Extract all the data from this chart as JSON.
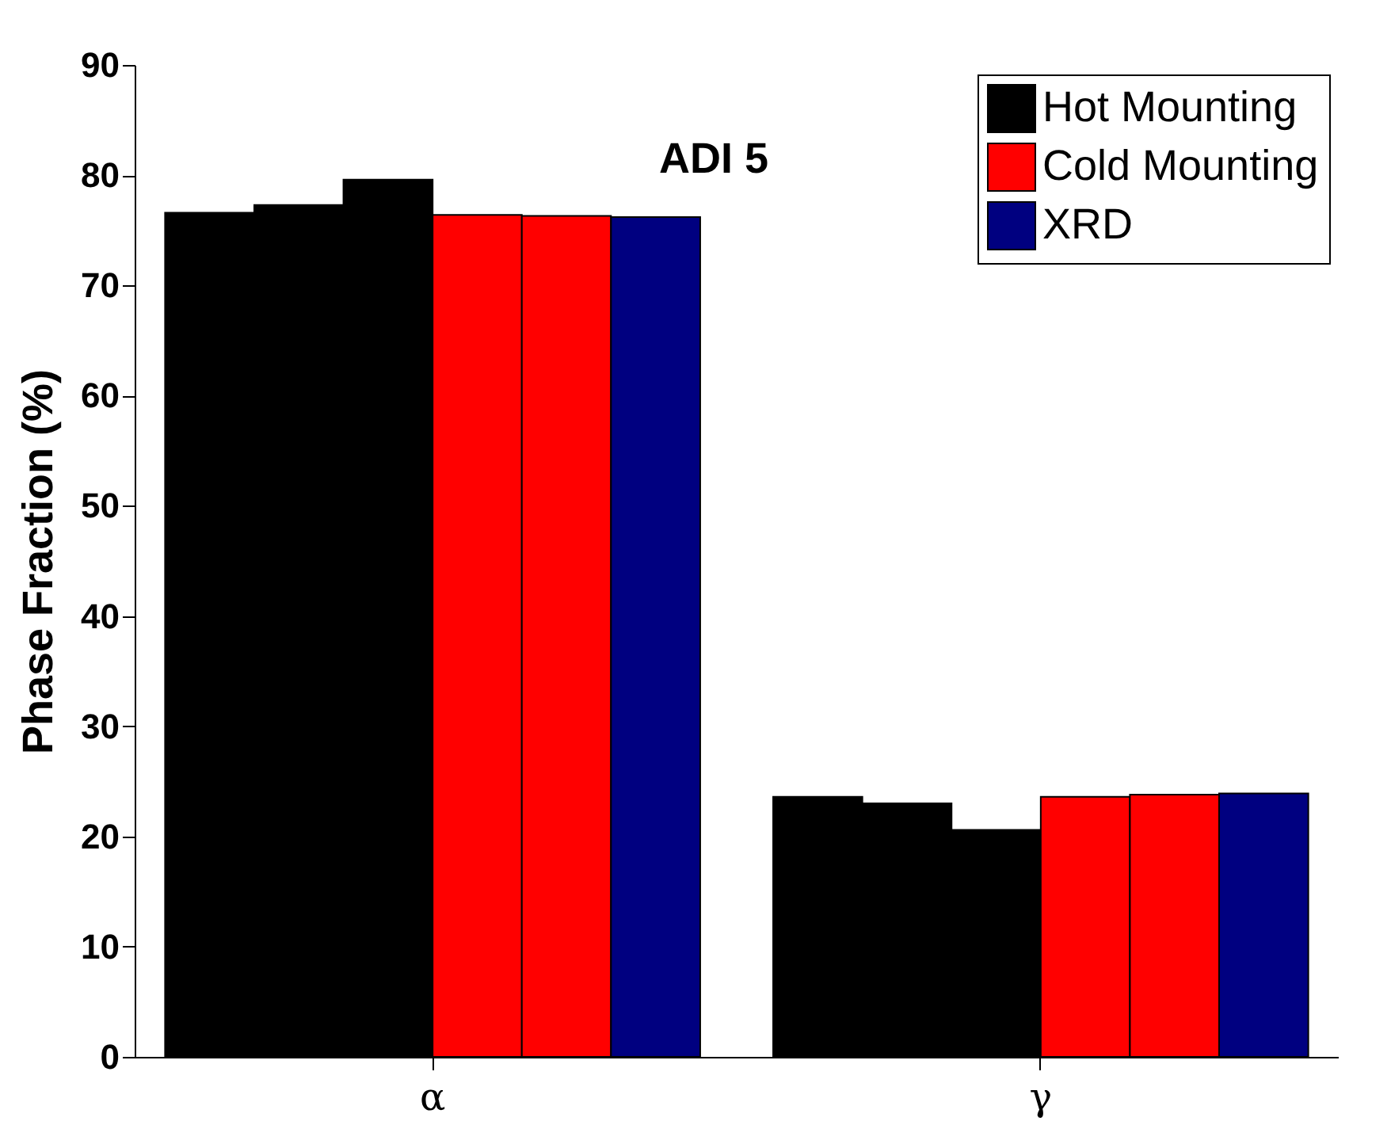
{
  "chart_data": {
    "type": "bar",
    "title": "ADI 5",
    "ylabel": "Phase Fraction (%)",
    "categories": [
      "α",
      "γ"
    ],
    "series": [
      {
        "name": "Hot Mounting",
        "color": "#000000",
        "values": [
          76.6,
          23.6
        ]
      },
      {
        "color": "#000000",
        "values": [
          77.3,
          23.0
        ]
      },
      {
        "color": "#000000",
        "values": [
          79.6,
          20.6
        ]
      },
      {
        "name": "Cold Mounting",
        "color": "#ff0000",
        "values": [
          76.4,
          23.6
        ]
      },
      {
        "color": "#ff0000",
        "values": [
          76.3,
          23.8
        ]
      },
      {
        "name": "XRD",
        "color": "#000080",
        "values": [
          76.2,
          23.9
        ]
      }
    ],
    "ylim": [
      0,
      90
    ],
    "yticks": [
      0,
      10,
      20,
      30,
      40,
      50,
      60,
      70,
      80,
      90
    ],
    "legend": "top right"
  }
}
